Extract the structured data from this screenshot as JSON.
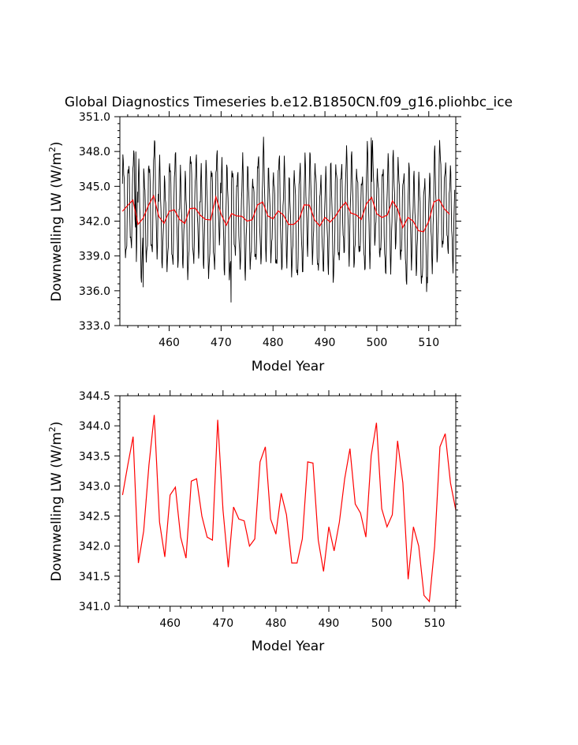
{
  "title": "Global Diagnostics Timeseries b.e12.B1850CN.f09_g16.pliohbc_ice",
  "colors": {
    "monthly": "#000000",
    "annual": "#ff0000",
    "axis": "#000000"
  },
  "chart_data": [
    {
      "type": "line",
      "xlabel": "Model Year",
      "ylabel": "Downwelling LW (W/m2)",
      "xlim": [
        450.5,
        515.2
      ],
      "ylim": [
        333.0,
        351.0
      ],
      "x_ticks": [
        460,
        470,
        480,
        490,
        500,
        510
      ],
      "y_ticks": [
        333.0,
        336.0,
        339.0,
        342.0,
        345.0,
        348.0,
        351.0
      ],
      "tick_labels_x": [
        "460",
        "470",
        "480",
        "490",
        "500",
        "510"
      ],
      "tick_labels_y": [
        "333.0",
        "336.0",
        "339.0",
        "342.0",
        "345.0",
        "348.0",
        "351.0"
      ],
      "monthly_series": {
        "x_start": 451.0,
        "x_end": 515.0,
        "annual_cycle_mean": 342.4,
        "annual_cycle_amplitude": 4.2,
        "extremes": [
          {
            "x": 453.6,
            "y": 348.0
          },
          {
            "x": 455.0,
            "y": 336.3
          },
          {
            "x": 471.9,
            "y": 335.0
          },
          {
            "x": 498.9,
            "y": 349.2
          },
          {
            "x": 509.6,
            "y": 335.9
          }
        ]
      },
      "series": [
        {
          "color": "#ff0000",
          "style": "annual"
        },
        {
          "color": "#000000",
          "style": "monthly"
        }
      ]
    },
    {
      "type": "line",
      "xlabel": "Model Year",
      "ylabel": "Downwelling LW (W/m2)",
      "xlim": [
        450.5,
        514.0
      ],
      "ylim": [
        341.0,
        344.5
      ],
      "x_ticks": [
        460,
        470,
        480,
        490,
        500,
        510
      ],
      "y_ticks": [
        341.0,
        341.5,
        342.0,
        342.5,
        343.0,
        343.5,
        344.0,
        344.5
      ],
      "tick_labels_x": [
        "460",
        "470",
        "480",
        "490",
        "500",
        "510"
      ],
      "tick_labels_y": [
        "341.0",
        "341.5",
        "342.0",
        "342.5",
        "343.0",
        "343.5",
        "344.0",
        "344.5"
      ],
      "series": [
        {
          "color": "#ff0000",
          "x": [
            451,
            452,
            453,
            454,
            455,
            456,
            457,
            458,
            459,
            460,
            461,
            462,
            463,
            464,
            465,
            466,
            467,
            468,
            469,
            470,
            471,
            472,
            473,
            474,
            475,
            476,
            477,
            478,
            479,
            480,
            481,
            482,
            483,
            484,
            485,
            486,
            487,
            488,
            489,
            490,
            491,
            492,
            493,
            494,
            495,
            496,
            497,
            498,
            499,
            500,
            501,
            502,
            503,
            504,
            505,
            506,
            507,
            508,
            509,
            510,
            511,
            512,
            513,
            514
          ],
          "values": [
            342.85,
            343.35,
            343.82,
            341.72,
            342.25,
            343.35,
            344.18,
            342.4,
            341.82,
            342.85,
            342.98,
            342.15,
            341.8,
            343.08,
            343.12,
            342.5,
            342.15,
            342.1,
            344.1,
            342.6,
            341.65,
            342.65,
            342.45,
            342.42,
            342.0,
            342.12,
            343.4,
            343.65,
            342.45,
            342.2,
            342.88,
            342.52,
            341.72,
            341.72,
            342.12,
            343.4,
            343.38,
            342.1,
            341.58,
            342.32,
            341.92,
            342.4,
            343.12,
            343.62,
            342.7,
            342.55,
            342.15,
            343.5,
            344.05,
            342.62,
            342.32,
            342.52,
            343.75,
            343.05,
            341.45,
            342.32,
            342.0,
            341.18,
            341.08,
            342.0,
            343.65,
            343.87,
            343.05,
            342.6
          ]
        }
      ]
    }
  ]
}
